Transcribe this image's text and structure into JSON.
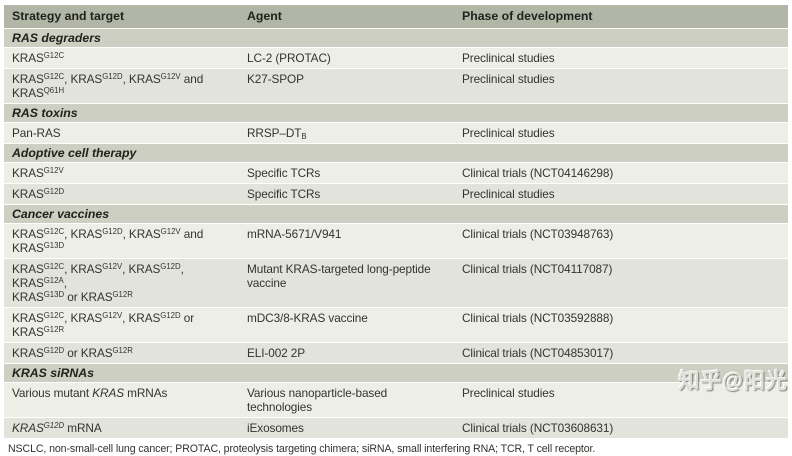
{
  "header": {
    "columns": [
      "Strategy and target",
      "Agent",
      "Phase of development"
    ]
  },
  "sections": [
    {
      "title": "RAS degraders",
      "rows": [
        {
          "strategy": "KRAS~G12C~",
          "agent": "LC-2 (PROTAC)",
          "phase": "Preclinical studies"
        },
        {
          "strategy": "KRAS~G12C~, KRAS~G12D~, KRAS~G12V~ and KRAS~Q61H~",
          "agent": "K27-SPOP",
          "phase": "Preclinical studies"
        }
      ]
    },
    {
      "title": "RAS toxins",
      "rows": [
        {
          "strategy": "Pan-RAS",
          "agent": "RRSP–DT_B_",
          "phase": "Preclinical studies"
        }
      ]
    },
    {
      "title": "Adoptive cell therapy",
      "rows": [
        {
          "strategy": "KRAS~G12V~",
          "agent": "Specific TCRs",
          "phase": "Clinical trials (NCT04146298)"
        },
        {
          "strategy": "KRAS~G12D~",
          "agent": "Specific TCRs",
          "phase": "Preclinical studies"
        }
      ]
    },
    {
      "title": "Cancer vaccines",
      "rows": [
        {
          "strategy": "KRAS~G12C~, KRAS~G12D~, KRAS~G12V~ and KRAS~G13D~",
          "agent": "mRNA-5671/V941",
          "phase": "Clinical trials (NCT03948763)"
        },
        {
          "strategy": "KRAS~G12C~, KRAS~G12V~, KRAS~G12D~, KRAS~G12A~,\nKRAS~G13D~ or KRAS~G12R~",
          "agent": "Mutant KRAS-targeted long-peptide\nvaccine",
          "phase": "Clinical trials (NCT04117087)"
        },
        {
          "strategy": "KRAS~G12C~, KRAS~G12V~, KRAS~G12D~ or KRAS~G12R~",
          "agent": "mDC3/8-KRAS vaccine",
          "phase": "Clinical trials (NCT03592888)"
        },
        {
          "strategy": "KRAS~G12D~ or KRAS~G12R~",
          "agent": "ELI-002 2P",
          "phase": "Clinical trials (NCT04853017)"
        }
      ]
    },
    {
      "title": "KRAS siRNAs",
      "rows": [
        {
          "strategy": "Various mutant *KRAS* mRNAs",
          "agent": "Various nanoparticle-based\ntechnologies",
          "phase": "Preclinical studies"
        },
        {
          "strategy": "*KRAS~G12D~* mRNA",
          "agent": "iExosomes",
          "phase": "Clinical trials (NCT03608631)"
        }
      ]
    }
  ],
  "footnote": "NSCLC, non-small-cell lung cancer; PROTAC, proteolysis targeting chimera; siRNA, small interfering RNA; TCR, T cell receptor.",
  "watermark": "知乎@阳光",
  "colors": {
    "header_bg": "#b2b6a6",
    "section_bg": "#cdcfc2",
    "row_light": "#edeee6",
    "row_dark": "#e2e3da",
    "text": "#35332d"
  }
}
